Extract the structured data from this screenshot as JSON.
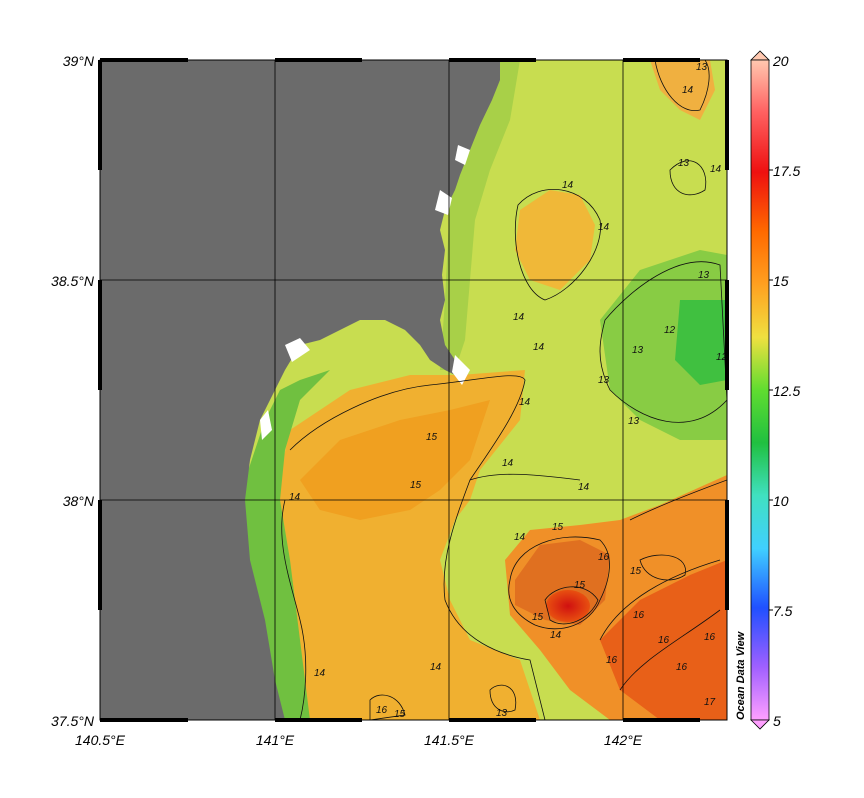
{
  "map": {
    "lat_labels": [
      "39°N",
      "38.5°N",
      "38°N",
      "37.5°N"
    ],
    "lon_labels": [
      "140.5°E",
      "141°E",
      "141.5°E",
      "142°E"
    ],
    "lat_range": [
      37.5,
      39.0
    ],
    "lon_range": [
      140.5,
      142.3
    ],
    "land_color": "#6b6b6b",
    "grid": true
  },
  "colorbar": {
    "labels": [
      "20",
      "17.5",
      "15",
      "12.5",
      "10",
      "7.5",
      "5"
    ],
    "range": [
      5,
      20
    ],
    "colors": [
      "#ffb3a0",
      "#ff2020",
      "#ff8000",
      "#ffe040",
      "#20d020",
      "#40e0e0",
      "#2060ff",
      "#ff80ff"
    ]
  },
  "contours": {
    "levels": [
      "12",
      "13",
      "14",
      "15",
      "16",
      "17"
    ],
    "labels": [
      "13",
      "14",
      "13",
      "14",
      "14",
      "13",
      "13",
      "12",
      "12",
      "13",
      "13",
      "14",
      "14",
      "14",
      "15",
      "15",
      "14",
      "14",
      "14",
      "14",
      "15",
      "16",
      "15",
      "14",
      "15",
      "15",
      "16",
      "16",
      "16",
      "16",
      "16",
      "17",
      "14",
      "14",
      "13",
      "16",
      "15",
      "14"
    ]
  },
  "watermark": "Ocean Data View"
}
